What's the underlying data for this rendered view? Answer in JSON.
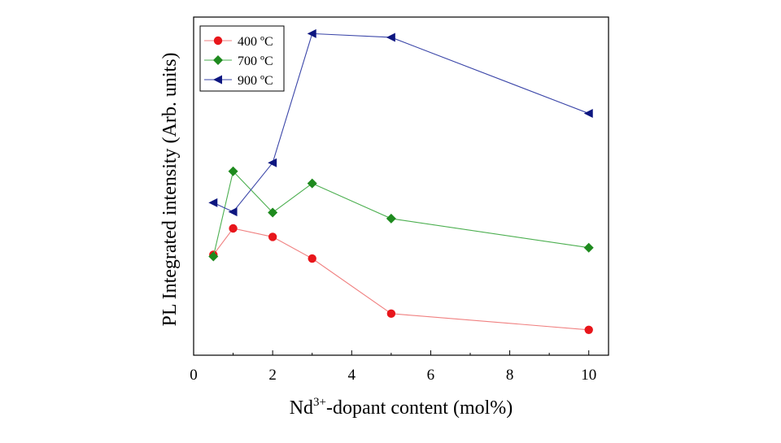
{
  "chart_data": {
    "type": "line",
    "title": "",
    "xlabel_prefix": "Nd",
    "xlabel_sup": "3+",
    "xlabel_suffix": "-dopant content (mol%)",
    "ylabel": "PL Integrated intensity (Arb. units)",
    "xlim": [
      0,
      10.5
    ],
    "ylim": [
      0,
      100
    ],
    "xticks": [
      0,
      2,
      4,
      6,
      8,
      10
    ],
    "yticks_visible": false,
    "grid": false,
    "legend_position": "top-left",
    "x": [
      0.5,
      1,
      2,
      3,
      5,
      10
    ],
    "series": [
      {
        "name": "400 ºC",
        "color": "#e8161b",
        "line_color": "#f08080",
        "marker": "circle",
        "values": [
          29.7,
          37.5,
          35.0,
          28.6,
          12.3,
          7.5
        ]
      },
      {
        "name": "700 ºC",
        "color": "#1e8a1e",
        "line_color": "#4caf50",
        "marker": "diamond",
        "values": [
          29.2,
          54.4,
          42.2,
          50.8,
          40.4,
          31.8
        ]
      },
      {
        "name": "900 ºC",
        "color": "#0d1680",
        "line_color": "#3a45a8",
        "marker": "triangle-left",
        "values": [
          45.1,
          42.4,
          56.9,
          95.1,
          94.0,
          71.5
        ]
      }
    ]
  }
}
